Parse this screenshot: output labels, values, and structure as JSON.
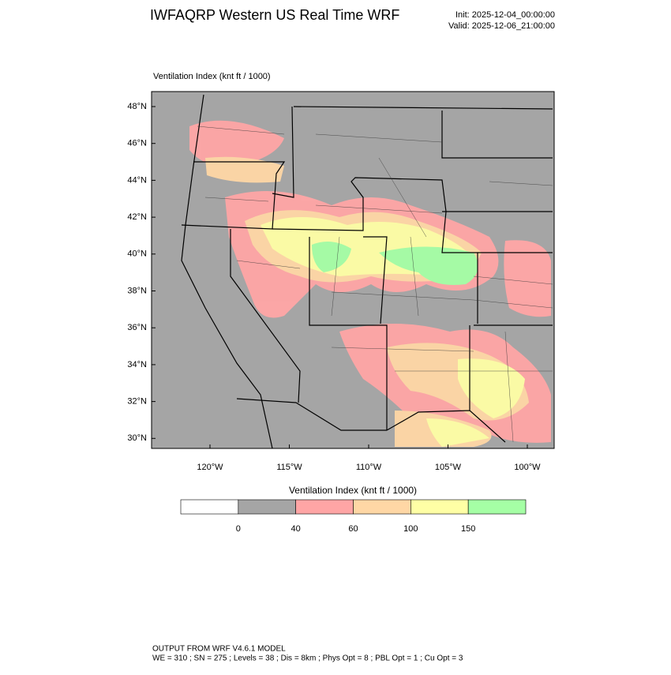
{
  "header": {
    "title": "IWFAQRP Western US Real Time WRF",
    "init": "Init: 2025-12-04_00:00:00",
    "valid": "Valid: 2025-12-06_21:00:00"
  },
  "map": {
    "field_label": "Ventilation Index   (knt ft / 1000)",
    "lat_labels": [
      "48°N",
      "46°N",
      "44°N",
      "42°N",
      "40°N",
      "38°N",
      "36°N",
      "34°N",
      "32°N",
      "30°N"
    ],
    "lon_labels": [
      "120°W",
      "115°W",
      "110°W",
      "105°W",
      "100°W"
    ]
  },
  "colorbar": {
    "title": "Ventilation Index   (knt ft / 1000)",
    "levels": [
      0,
      40,
      60,
      100,
      150
    ],
    "colors": [
      "#ffffff",
      "#a5a5a5",
      "#ffa5a5",
      "#ffd7a5",
      "#ffffa5",
      "#a5ffa5"
    ]
  },
  "footer": {
    "line1": "OUTPUT FROM WRF V4.6.1 MODEL",
    "line2": "WE = 310 ; SN = 275 ; Levels = 38 ; Dis = 8km ; Phys Opt = 8 ; PBL Opt = 1 ; Cu Opt = 3"
  }
}
